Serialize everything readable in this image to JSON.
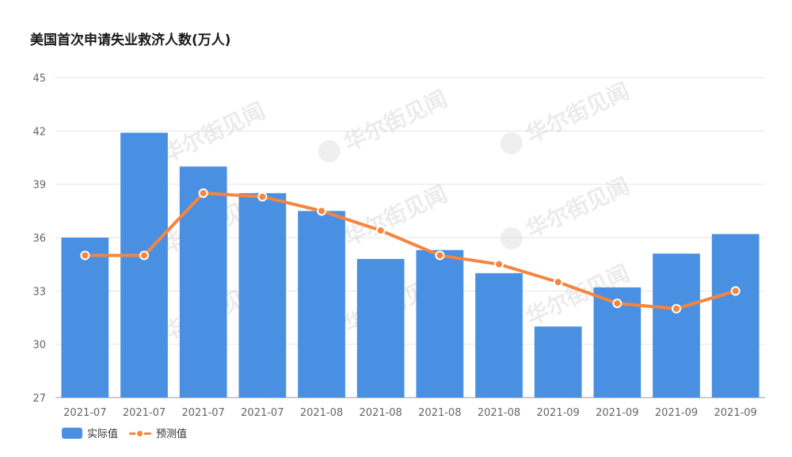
{
  "title": "美国首次申请失业救济人数(万人)",
  "colors": {
    "bar": "#4A90E2",
    "line": "#F5853F",
    "grid": "#e6e6e6",
    "axis": "#999999"
  },
  "watermark": {
    "text": "华尔街见闻"
  },
  "legend": {
    "actual": "实际值",
    "forecast": "预测值"
  },
  "chart_data": {
    "type": "bar",
    "title": "美国首次申请失业救济人数(万人)",
    "categories": [
      "2021-07",
      "2021-07",
      "2021-07",
      "2021-07",
      "2021-08",
      "2021-08",
      "2021-08",
      "2021-08",
      "2021-09",
      "2021-09",
      "2021-09",
      "2021-09"
    ],
    "series": [
      {
        "name": "实际值",
        "type": "bar",
        "values": [
          36.0,
          41.9,
          40.0,
          38.5,
          37.5,
          34.8,
          35.3,
          34.0,
          31.0,
          33.2,
          35.1,
          36.2
        ]
      },
      {
        "name": "预测值",
        "type": "line",
        "values": [
          35.0,
          35.0,
          38.5,
          38.3,
          37.5,
          36.4,
          35.0,
          34.5,
          33.5,
          32.3,
          32.0,
          33.0
        ]
      }
    ],
    "ylim": [
      27,
      45
    ],
    "yticks": [
      27,
      30,
      33,
      36,
      39,
      42,
      45
    ],
    "grid": true,
    "legend_position": "bottom-left"
  }
}
